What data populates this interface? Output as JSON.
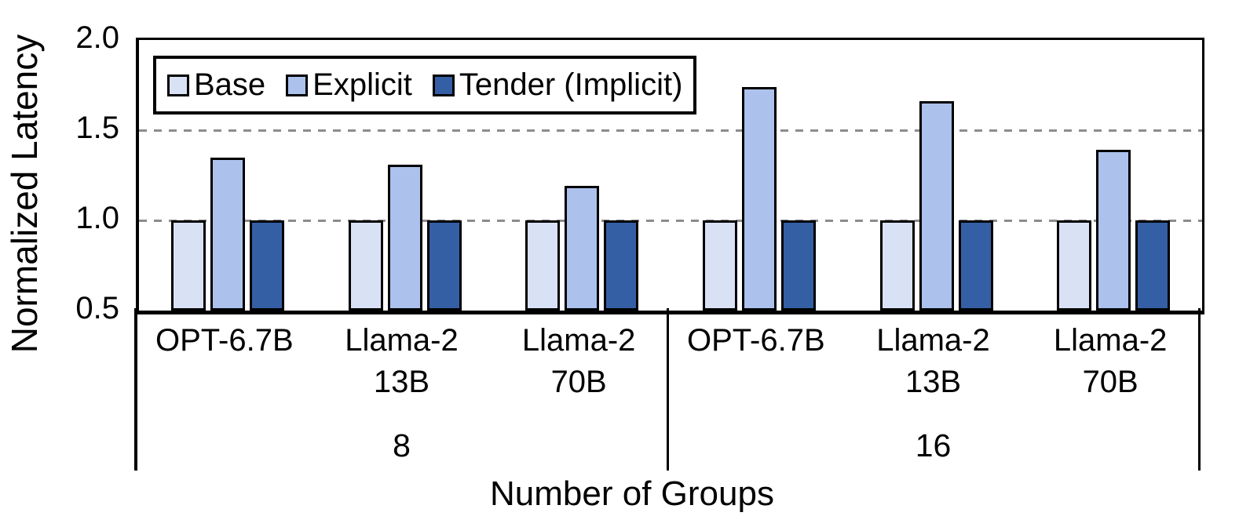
{
  "chart_data": {
    "type": "bar",
    "title": "",
    "ylabel": "Normalized Latency",
    "xlabel": "Number of Groups",
    "ylim": [
      0.5,
      2.0
    ],
    "yticks": [
      2.0,
      1.5,
      1.0,
      0.5
    ],
    "ytick_labels": [
      "2.0",
      "1.5",
      "1.0",
      "0.5"
    ],
    "gridlines_at": [
      1.5,
      1.0
    ],
    "grid": "horizontal dashed gray lines at 1.0 and 1.5",
    "legend_position": "top-left inside plot area",
    "categories": [
      "OPT-6.7B",
      "Llama-2\n13B",
      "Llama-2\n70B",
      "OPT-6.7B",
      "Llama-2\n13B",
      "Llama-2\n70B"
    ],
    "group_labels": [
      "8",
      "16"
    ],
    "series": [
      {
        "name": "Base",
        "color": "#D9E1F5",
        "values": [
          1.0,
          1.0,
          1.0,
          1.0,
          1.0,
          1.0
        ]
      },
      {
        "name": "Explicit",
        "color": "#ACC1EC",
        "values": [
          1.35,
          1.31,
          1.19,
          1.74,
          1.66,
          1.39
        ]
      },
      {
        "name": "Tender (Implicit)",
        "color": "#355FA4",
        "values": [
          1.0,
          1.0,
          1.0,
          1.0,
          1.0,
          1.0
        ]
      }
    ]
  },
  "colors": {
    "bar_border": "#000000",
    "gridline": "#8C8C8C",
    "frame": "#000000",
    "background": "#FFFFFF",
    "text": "#000000"
  }
}
